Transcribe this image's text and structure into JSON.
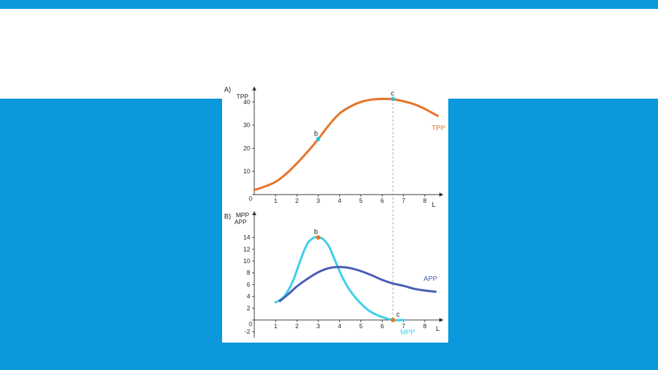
{
  "slide": {
    "background_color": "#0b98dc",
    "band_color": "#ffffff"
  },
  "chart_data": [
    {
      "type": "line",
      "panel_label": "A)",
      "title": "",
      "ylabel": "TPP",
      "xlabel": "L",
      "origin_label": "0",
      "x_ticks": [
        1,
        2,
        3,
        4,
        5,
        6,
        7,
        8
      ],
      "y_ticks": [
        10,
        20,
        30,
        40
      ],
      "xlim": [
        0,
        8.7
      ],
      "ylim": [
        0,
        45
      ],
      "grid": false,
      "series": [
        {
          "name": "TPP",
          "color": "#e8732a",
          "x": [
            0,
            0.5,
            1,
            1.5,
            2,
            2.5,
            3,
            3.5,
            4,
            4.5,
            5,
            5.5,
            6,
            6.5,
            7,
            7.5,
            8,
            8.6
          ],
          "y": [
            2,
            3.5,
            5.5,
            9,
            13.5,
            18.5,
            24,
            30,
            35,
            38,
            40,
            41,
            41.3,
            41.2,
            40.3,
            39,
            37,
            34
          ]
        }
      ],
      "points": [
        {
          "label": "b",
          "x": 3,
          "y": 24,
          "color": "#2ec4e0"
        },
        {
          "label": "c",
          "x": 6.5,
          "y": 41.3,
          "color": "#2ec4e0"
        }
      ],
      "vline_x": 6.5
    },
    {
      "type": "line",
      "panel_label": "B)",
      "title": "",
      "ylabel": "MPP",
      "ylabel2": "APP",
      "xlabel": "L",
      "origin_label": "0",
      "x_ticks": [
        1,
        2,
        3,
        4,
        5,
        6,
        7,
        8
      ],
      "y_ticks": [
        -2,
        2,
        4,
        6,
        8,
        10,
        12,
        14
      ],
      "xlim": [
        0,
        8.7
      ],
      "ylim": [
        -3,
        17
      ],
      "grid": false,
      "series": [
        {
          "name": "MPP",
          "color": "#3fd0ea",
          "x": [
            1,
            1.4,
            1.8,
            2.2,
            2.5,
            2.8,
            3,
            3.2,
            3.5,
            3.8,
            4.1,
            4.4,
            4.7,
            5,
            5.3,
            5.6,
            6,
            6.5,
            7
          ],
          "y": [
            3,
            4,
            6.5,
            10.5,
            13,
            14,
            14,
            13.8,
            12.5,
            10,
            7.5,
            5.5,
            4,
            2.8,
            1.8,
            1.1,
            0.5,
            0,
            0
          ]
        },
        {
          "name": "APP",
          "color": "#4b5fb5",
          "x": [
            1.2,
            1.6,
            2,
            2.5,
            3,
            3.5,
            4,
            4.5,
            5,
            5.5,
            6,
            6.5,
            7,
            7.5,
            8,
            8.5
          ],
          "y": [
            3.2,
            4.4,
            5.7,
            7,
            8.1,
            8.8,
            9,
            8.8,
            8.3,
            7.6,
            6.8,
            6.2,
            5.8,
            5.3,
            5,
            4.8
          ]
        }
      ],
      "points": [
        {
          "label": "b",
          "x": 3,
          "y": 14,
          "color": "#e8732a"
        },
        {
          "label": "c",
          "x": 6.5,
          "y": 0,
          "color": "#e8732a"
        }
      ],
      "vline_x": 6.5
    }
  ]
}
